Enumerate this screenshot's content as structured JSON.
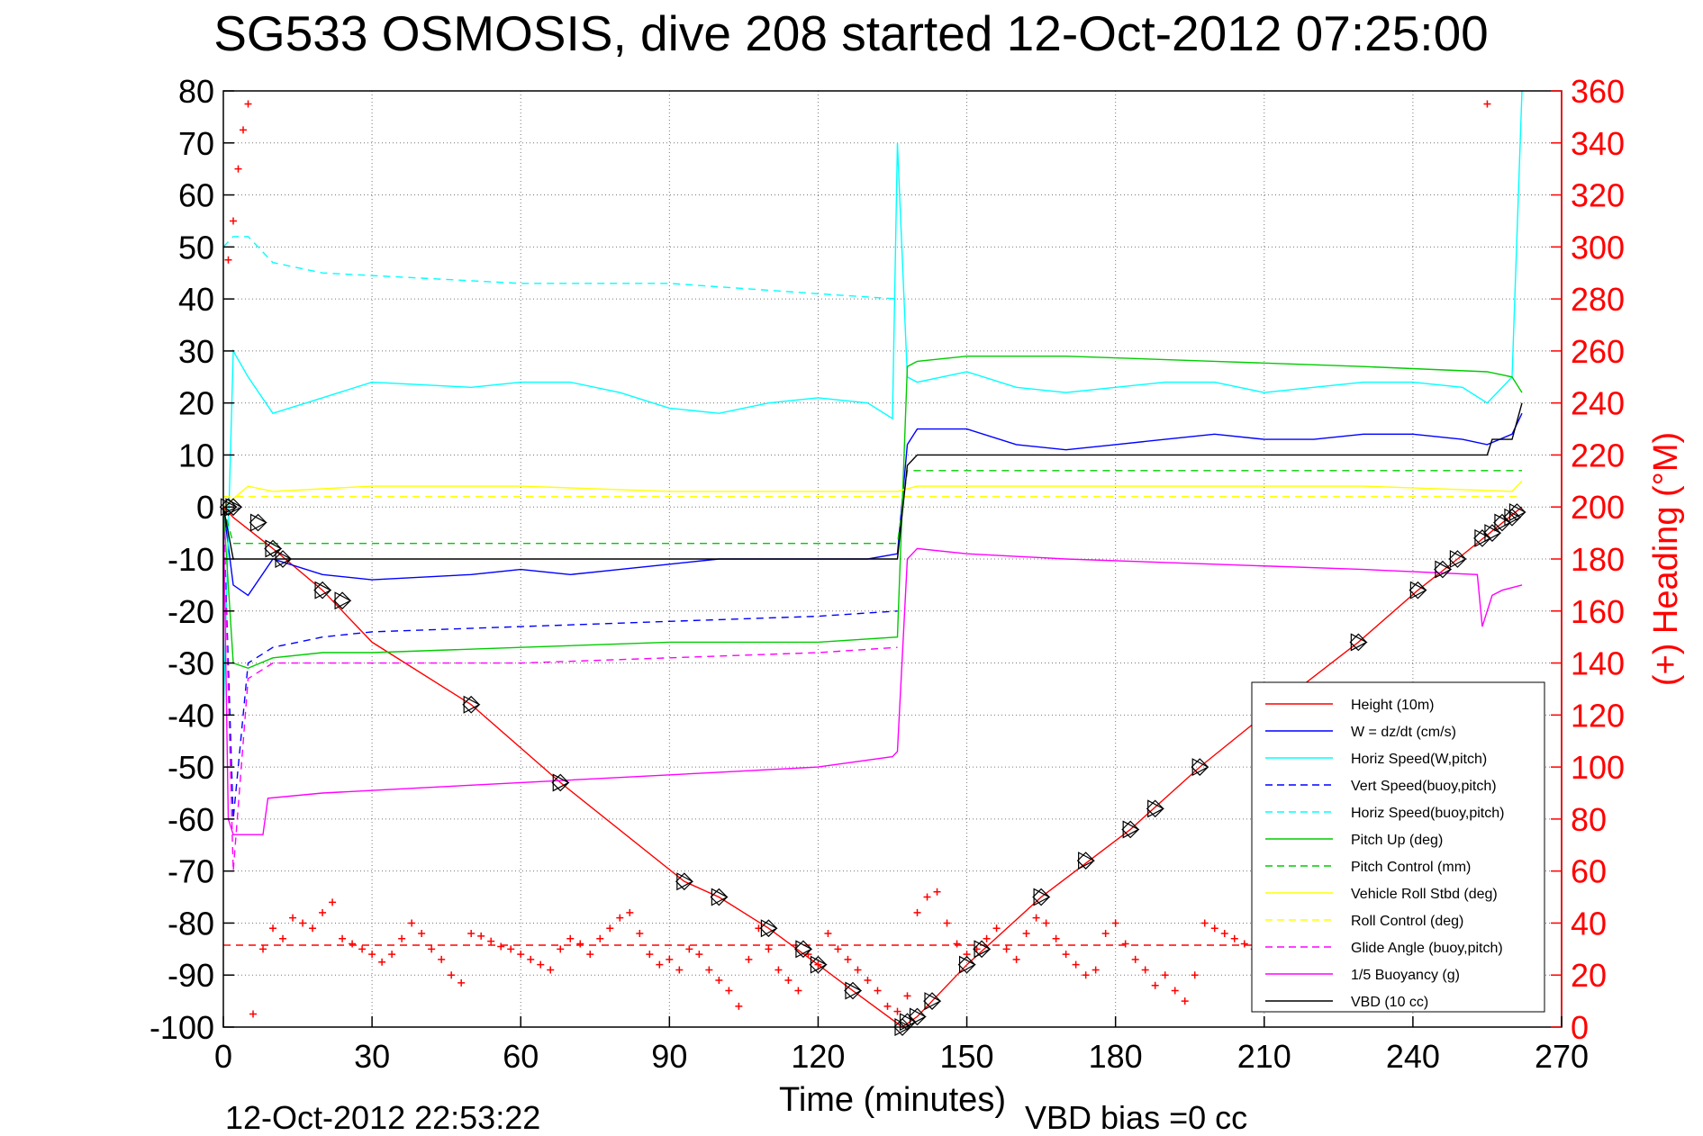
{
  "chart_data": {
    "type": "line",
    "title": "SG533 OSMOSIS, dive 208 started 12-Oct-2012 07:25:00",
    "xlabel": "Time (minutes)",
    "ylabel": "",
    "y2label": "(+) Heading (°M)",
    "xlim": [
      0,
      270
    ],
    "ylim": [
      -100,
      80
    ],
    "y2lim": [
      0,
      360
    ],
    "xticks": [
      0,
      30,
      60,
      90,
      120,
      150,
      180,
      210,
      240,
      270
    ],
    "yticks": [
      80,
      70,
      60,
      50,
      40,
      30,
      20,
      10,
      0,
      -10,
      -20,
      -30,
      -40,
      -50,
      -60,
      -70,
      -80,
      -90,
      -100
    ],
    "y2ticks": [
      360,
      340,
      320,
      300,
      280,
      260,
      240,
      220,
      200,
      180,
      160,
      140,
      120,
      100,
      80,
      60,
      40,
      20,
      0
    ],
    "grid": true,
    "legend_position": "bottom-right",
    "footer_left": "12-Oct-2012 22:53:22",
    "footer_right": "VBD bias =0 cc",
    "series": [
      {
        "name": "Height (10m)",
        "color": "#ff0000",
        "style": "solid",
        "x": [
          0,
          2,
          10,
          20,
          30,
          50,
          68,
          93,
          100,
          110,
          120,
          127,
          137,
          140,
          150,
          165,
          183,
          197,
          210,
          229,
          241,
          249,
          262
        ],
        "y": [
          0,
          -2,
          -8,
          -16,
          -26,
          -38,
          -53,
          -72,
          -75,
          -81,
          -88,
          -93,
          -100,
          -98,
          -88,
          -75,
          -62,
          -50,
          -40,
          -26,
          -16,
          -10,
          0
        ]
      },
      {
        "name": "W = dz/dt (cm/s)",
        "color": "#0000ff",
        "style": "solid",
        "x": [
          0,
          2,
          5,
          10,
          20,
          30,
          50,
          60,
          70,
          80,
          90,
          100,
          110,
          120,
          130,
          136,
          138,
          140,
          150,
          160,
          170,
          180,
          190,
          200,
          210,
          220,
          230,
          240,
          250,
          255,
          260,
          262
        ],
        "y": [
          0,
          -15,
          -17,
          -10,
          -13,
          -14,
          -13,
          -12,
          -13,
          -12,
          -11,
          -10,
          -10,
          -10,
          -10,
          -9,
          12,
          15,
          15,
          12,
          11,
          12,
          13,
          14,
          13,
          13,
          14,
          14,
          13,
          12,
          14,
          18
        ]
      },
      {
        "name": "Horiz Speed(W,pitch)",
        "color": "#00ffff",
        "style": "solid",
        "x": [
          0,
          2,
          5,
          10,
          20,
          30,
          50,
          60,
          70,
          80,
          90,
          100,
          110,
          120,
          130,
          135,
          136,
          138,
          140,
          150,
          160,
          170,
          180,
          190,
          200,
          210,
          220,
          230,
          240,
          250,
          255,
          260,
          262
        ],
        "y": [
          -40,
          30,
          25,
          18,
          21,
          24,
          23,
          24,
          24,
          22,
          19,
          18,
          20,
          21,
          20,
          17,
          70,
          25,
          24,
          26,
          23,
          22,
          23,
          24,
          24,
          22,
          23,
          24,
          24,
          23,
          20,
          25,
          80
        ]
      },
      {
        "name": "Vert Speed(buoy,pitch)",
        "color": "#0000ff",
        "style": "dashed",
        "x": [
          0,
          2,
          5,
          10,
          20,
          30,
          60,
          90,
          120,
          136
        ],
        "y": [
          0,
          -60,
          -30,
          -27,
          -25,
          -24,
          -23,
          -22,
          -21,
          -20
        ]
      },
      {
        "name": "Horiz Speed(buoy,pitch)",
        "color": "#00ffff",
        "style": "dashed",
        "x": [
          0,
          2,
          5,
          10,
          20,
          40,
          60,
          90,
          120,
          136
        ],
        "y": [
          50,
          52,
          52,
          47,
          45,
          44,
          43,
          43,
          41,
          40
        ]
      },
      {
        "name": "Pitch Up (deg)",
        "color": "#00cc00",
        "style": "solid",
        "x": [
          0,
          2,
          5,
          10,
          20,
          30,
          60,
          90,
          120,
          136,
          138,
          140,
          150,
          170,
          200,
          230,
          255,
          260,
          262
        ],
        "y": [
          0,
          -30,
          -31,
          -29,
          -28,
          -28,
          -27,
          -26,
          -26,
          -25,
          27,
          28,
          29,
          29,
          28,
          27,
          26,
          25,
          22
        ]
      },
      {
        "name": "Pitch Control (mm)",
        "color": "#00cc00",
        "style": "dashed",
        "x": [
          0,
          2,
          5,
          136,
          138,
          262
        ],
        "y": [
          0,
          -7,
          -7,
          -7,
          7,
          7
        ]
      },
      {
        "name": "Vehicle Roll Stbd (deg)",
        "color": "#ffff00",
        "style": "solid",
        "x": [
          0,
          5,
          10,
          30,
          60,
          90,
          120,
          136,
          140,
          170,
          200,
          230,
          260,
          262
        ],
        "y": [
          0,
          4,
          3,
          4,
          4,
          3,
          3,
          3,
          4,
          4,
          4,
          4,
          3,
          5
        ]
      },
      {
        "name": "Roll Control (deg)",
        "color": "#ffff00",
        "style": "dashed",
        "x": [
          0,
          136,
          138,
          262
        ],
        "y": [
          2,
          2,
          2,
          2
        ]
      },
      {
        "name": "Glide Angle (buoy,pitch)",
        "color": "#ff00ff",
        "style": "dashed",
        "x": [
          0,
          2,
          5,
          10,
          30,
          60,
          90,
          120,
          136
        ],
        "y": [
          0,
          -70,
          -33,
          -30,
          -30,
          -30,
          -29,
          -28,
          -27
        ]
      },
      {
        "name": "1/5 Buoyancy (g)",
        "color": "#ff00ff",
        "style": "solid",
        "x": [
          0,
          1,
          2,
          8,
          9,
          20,
          40,
          60,
          80,
          100,
          120,
          135,
          136,
          138,
          140,
          150,
          170,
          200,
          230,
          253,
          254,
          256,
          258,
          262
        ],
        "y": [
          0,
          -60,
          -63,
          -63,
          -56,
          -55,
          -54,
          -53,
          -52,
          -51,
          -50,
          -48,
          -47,
          -10,
          -8,
          -9,
          -10,
          -11,
          -12,
          -13,
          -23,
          -17,
          -16,
          -15
        ]
      },
      {
        "name": "VBD (10 cc)",
        "color": "#000000",
        "style": "solid",
        "x": [
          0,
          2,
          5,
          10,
          136,
          138,
          140,
          255,
          256,
          260,
          262
        ],
        "y": [
          0,
          -10,
          -10,
          -10,
          -10,
          8,
          10,
          10,
          13,
          13,
          20
        ]
      },
      {
        "name": "Heading",
        "color": "#ff0000",
        "style": "dashed",
        "axis": "right",
        "x": [
          0,
          262
        ],
        "y": [
          31.5,
          31.5
        ]
      }
    ],
    "heading_points": {
      "color": "#ff0000",
      "axis": "right",
      "x": [
        1,
        2,
        3,
        4,
        5,
        6,
        8,
        10,
        12,
        14,
        16,
        18,
        20,
        22,
        24,
        26,
        28,
        30,
        32,
        34,
        36,
        38,
        40,
        42,
        44,
        46,
        48,
        50,
        52,
        54,
        56,
        58,
        60,
        62,
        64,
        66,
        68,
        70,
        72,
        74,
        76,
        78,
        80,
        82,
        84,
        86,
        88,
        90,
        92,
        94,
        96,
        98,
        100,
        102,
        104,
        106,
        108,
        110,
        112,
        114,
        116,
        118,
        120,
        122,
        124,
        126,
        128,
        130,
        132,
        134,
        136,
        138,
        140,
        142,
        144,
        146,
        148,
        150,
        152,
        154,
        156,
        158,
        160,
        162,
        164,
        166,
        168,
        170,
        172,
        174,
        176,
        178,
        180,
        182,
        184,
        186,
        188,
        190,
        192,
        194,
        196,
        198,
        200,
        202,
        204,
        206,
        208,
        210,
        255
      ],
      "y": [
        295,
        310,
        330,
        345,
        355,
        5,
        30,
        38,
        34,
        42,
        40,
        38,
        44,
        48,
        34,
        32,
        30,
        28,
        25,
        28,
        34,
        40,
        36,
        30,
        26,
        20,
        17,
        36,
        35,
        33,
        31,
        30,
        28,
        26,
        24,
        22,
        30,
        34,
        32,
        28,
        34,
        38,
        42,
        44,
        36,
        28,
        24,
        26,
        22,
        30,
        28,
        22,
        18,
        14,
        8,
        26,
        38,
        30,
        22,
        18,
        14,
        28,
        24,
        36,
        30,
        26,
        22,
        18,
        14,
        8,
        6,
        12,
        44,
        50,
        52,
        40,
        32,
        28,
        30,
        34,
        38,
        30,
        26,
        36,
        42,
        40,
        34,
        28,
        24,
        20,
        22,
        36,
        40,
        32,
        26,
        22,
        16,
        20,
        14,
        10,
        20,
        40,
        38,
        36,
        34,
        32,
        30,
        28,
        355
      ]
    },
    "markers": {
      "type": "triangle-diamond",
      "color": "#000000",
      "x": [
        1,
        2,
        7,
        10,
        12,
        20,
        24,
        50,
        68,
        93,
        100,
        110,
        117,
        120,
        127,
        137,
        138,
        140,
        143,
        150,
        153,
        165,
        174,
        183,
        188,
        197,
        229,
        241,
        246,
        249,
        254,
        256,
        258,
        260,
        261
      ],
      "y": [
        0,
        0,
        -3,
        -8,
        -10,
        -16,
        -18,
        -38,
        -53,
        -72,
        -75,
        -81,
        -85,
        -88,
        -93,
        -100,
        -99,
        -98,
        -95,
        -88,
        -85,
        -75,
        -68,
        -62,
        -58,
        -50,
        -26,
        -16,
        -12,
        -10,
        -6,
        -5,
        -3,
        -2,
        -1
      ]
    }
  }
}
